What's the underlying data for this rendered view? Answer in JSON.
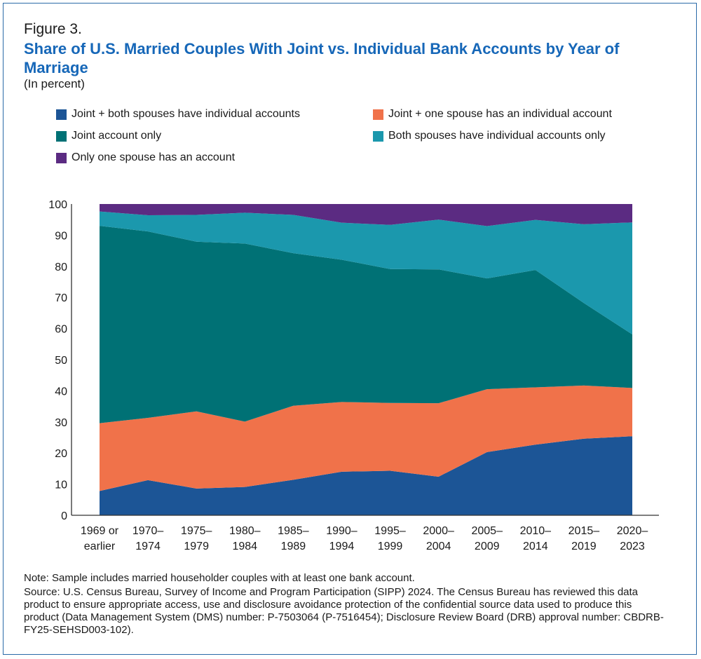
{
  "figure_label": "Figure 3.",
  "title": "Share of U.S. Married Couples With Joint vs. Individual Bank Accounts by Year of Marriage",
  "subtitle": "(In percent)",
  "note": "Note: Sample includes married householder couples with at least one bank account.",
  "source": "Source: U.S. Census Bureau, Survey of Income and Program Participation (SIPP) 2024. The Census Bureau has reviewed this data product to ensure appropriate access, use and disclosure avoidance protection of the confidential source data used to produce this product (Data Management System (DMS) number: P-7503064 (P-7516454); Disclosure Review Board (DRB) approval number: CBDRB-FY25-SEHSD003-102).",
  "chart_data": {
    "type": "area",
    "stacked": true,
    "title": "Share of U.S. Married Couples With Joint vs. Individual Bank Accounts by Year of Marriage",
    "xlabel": "",
    "ylabel": "",
    "ylim": [
      0,
      100
    ],
    "y_ticks": [
      0,
      10,
      20,
      30,
      40,
      50,
      60,
      70,
      80,
      90,
      100
    ],
    "grid": false,
    "legend_position": "top",
    "categories": [
      [
        "1969 or",
        "earlier"
      ],
      [
        "1970–",
        "1974"
      ],
      [
        "1975–",
        "1979"
      ],
      [
        "1980–",
        "1984"
      ],
      [
        "1985–",
        "1989"
      ],
      [
        "1990–",
        "1994"
      ],
      [
        "1995–",
        "1999"
      ],
      [
        "2000–",
        "2004"
      ],
      [
        "2005–",
        "2009"
      ],
      [
        "2010–",
        "2014"
      ],
      [
        "2015–",
        "2019"
      ],
      [
        "2020–",
        "2023"
      ]
    ],
    "series": [
      {
        "name": "Joint + both spouses have individual accounts",
        "color": "#1c5596",
        "values": [
          7.8,
          11.3,
          8.6,
          9.1,
          11.4,
          14.0,
          14.3,
          12.4,
          20.3,
          22.7,
          24.6,
          25.4
        ]
      },
      {
        "name": "Joint + one spouse has an individual account",
        "color": "#f0724a",
        "values": [
          21.8,
          20.0,
          24.8,
          21.0,
          23.8,
          22.4,
          21.8,
          23.6,
          20.2,
          18.4,
          17.1,
          15.5
        ]
      },
      {
        "name": "Joint account only",
        "color": "#007175",
        "values": [
          63.4,
          59.9,
          54.5,
          57.2,
          49.0,
          45.7,
          43.0,
          43.0,
          35.6,
          37.7,
          26.5,
          17.2
        ]
      },
      {
        "name": "Both spouses have individual accounts only",
        "color": "#1b98ad",
        "values": [
          4.6,
          5.2,
          8.6,
          9.9,
          12.3,
          11.9,
          14.2,
          16.0,
          16.8,
          16.1,
          25.3,
          36.0
        ]
      },
      {
        "name": "Only one spouse has an account",
        "color": "#5b2b82",
        "values": [
          2.4,
          3.6,
          3.5,
          2.8,
          3.5,
          6.0,
          6.7,
          5.0,
          7.1,
          5.1,
          6.5,
          5.9
        ]
      }
    ]
  }
}
